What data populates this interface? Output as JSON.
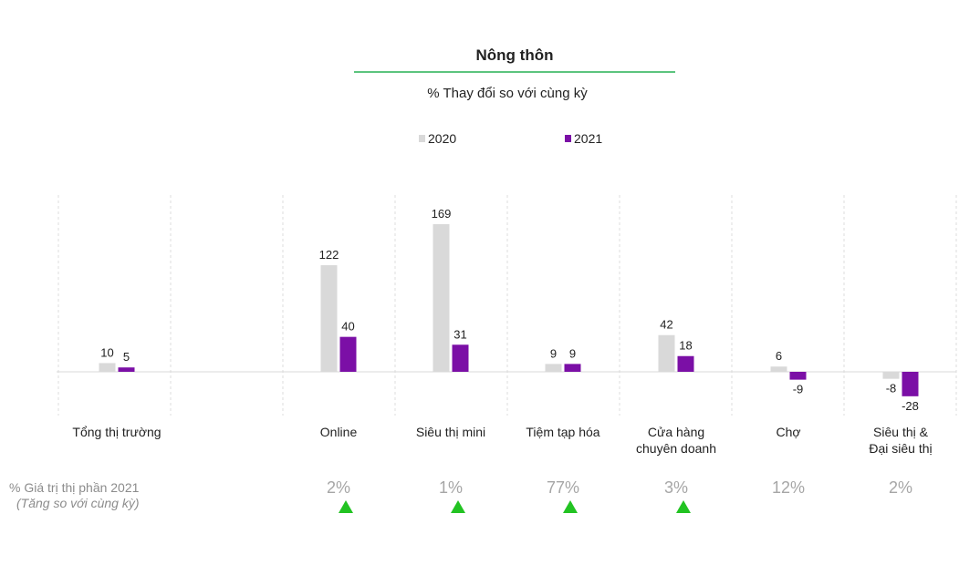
{
  "chart_data": {
    "type": "bar",
    "title": "Nông thôn",
    "subtitle": "% Thay đổi so với cùng kỳ",
    "legend_position": "top",
    "categories": [
      [
        "Tổng thị trường"
      ],
      [
        "Online"
      ],
      [
        "Siêu thị mini"
      ],
      [
        "Tiệm tạp hóa"
      ],
      [
        "Cửa hàng",
        "chuyên doanh"
      ],
      [
        "Chợ"
      ],
      [
        "Siêu thị &",
        "Đại siêu thị"
      ]
    ],
    "series": [
      {
        "name": "2020",
        "color": "#d9d9d9",
        "values": [
          10,
          122,
          169,
          9,
          42,
          6,
          -8
        ]
      },
      {
        "name": "2021",
        "color": "#7b0fa6",
        "values": [
          5,
          40,
          31,
          9,
          18,
          -9,
          -28
        ]
      }
    ],
    "share": {
      "label": "% Giá trị thị phần 2021",
      "note": "(Tăng so với cùng kỳ)",
      "values": [
        "",
        "2%",
        "1%",
        "77%",
        "3%",
        "12%",
        "2%"
      ],
      "up_arrow": [
        false,
        true,
        true,
        true,
        true,
        false,
        false
      ],
      "arrow_color": "#22c322"
    },
    "title_rule_color": "#5cc47e"
  }
}
